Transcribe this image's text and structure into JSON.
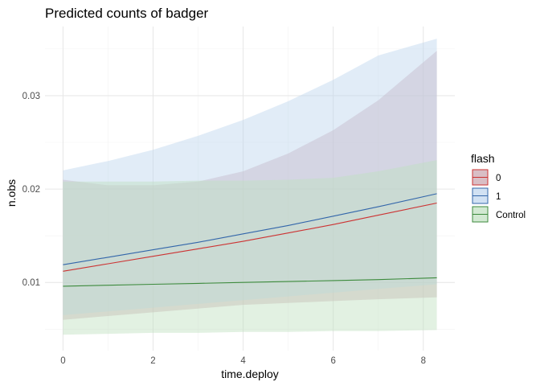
{
  "chart_data": {
    "type": "line",
    "title": "Predicted counts of badger",
    "xlabel": "time.deploy",
    "ylabel": "n.obs",
    "xlim": [
      -0.4,
      8.7
    ],
    "ylim": [
      0.0027,
      0.0374
    ],
    "x_ticks": [
      0,
      2,
      4,
      6,
      8
    ],
    "x_tick_labels": [
      "0",
      "2",
      "4",
      "6",
      "8"
    ],
    "y_ticks": [
      0.01,
      0.02,
      0.03
    ],
    "y_tick_labels": [
      "0.01",
      "0.02",
      "0.03"
    ],
    "grid": true,
    "legend": {
      "title": "flash",
      "position": "right"
    },
    "x": [
      0,
      1,
      2,
      3,
      4,
      5,
      6,
      7,
      8.3
    ],
    "series": [
      {
        "name": "0",
        "color": "#cc3333",
        "fill": "#c9a3ad",
        "fill_opacity": 0.45,
        "values": [
          0.0112,
          0.012,
          0.0128,
          0.0136,
          0.0144,
          0.0153,
          0.0162,
          0.0172,
          0.0185
        ],
        "lower": [
          0.006,
          0.0064,
          0.0068,
          0.0072,
          0.0076,
          0.0078,
          0.008,
          0.0082,
          0.0084
        ],
        "upper": [
          0.021,
          0.0204,
          0.0204,
          0.0208,
          0.0219,
          0.0238,
          0.0263,
          0.0295,
          0.0348
        ]
      },
      {
        "name": "1",
        "color": "#3366aa",
        "fill": "#bdd4ee",
        "fill_opacity": 0.45,
        "values": [
          0.0119,
          0.0127,
          0.0135,
          0.0143,
          0.0152,
          0.0161,
          0.0171,
          0.0181,
          0.0195
        ],
        "lower": [
          0.0065,
          0.0069,
          0.0073,
          0.0077,
          0.0081,
          0.0085,
          0.0089,
          0.0093,
          0.0098
        ],
        "upper": [
          0.022,
          0.023,
          0.0242,
          0.0257,
          0.0274,
          0.0294,
          0.0317,
          0.0343,
          0.0361
        ]
      },
      {
        "name": "Control",
        "color": "#3c8a3c",
        "fill": "#bfe0bf",
        "fill_opacity": 0.45,
        "values": [
          0.0096,
          0.0097,
          0.0098,
          0.0099,
          0.01,
          0.0101,
          0.0102,
          0.0103,
          0.0105
        ],
        "lower": [
          0.0044,
          0.0045,
          0.0046,
          0.0046,
          0.0047,
          0.0047,
          0.0048,
          0.0048,
          0.0049
        ],
        "upper": [
          0.0208,
          0.0208,
          0.0208,
          0.0209,
          0.0209,
          0.021,
          0.0212,
          0.0219,
          0.0231
        ]
      }
    ]
  }
}
